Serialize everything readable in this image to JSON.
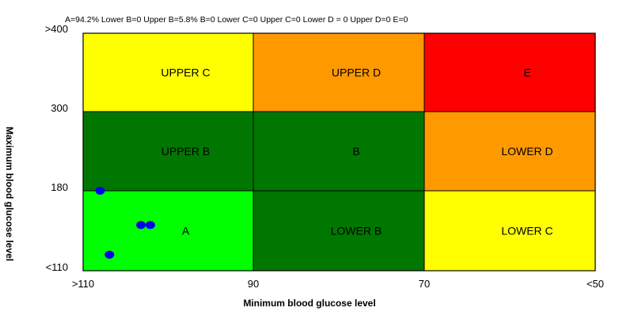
{
  "summary_text": "A=94.2% Lower B=0 Upper B=5.8% B=0 Lower C=0 Upper C=0 Lower D = 0  Upper D=0 E=0",
  "chart_data": {
    "type": "scatter",
    "title": "",
    "xlabel": "Minimum blood glucose level",
    "ylabel": "Maximum blood glucose level",
    "x_ticks": [
      ">110",
      "90",
      "70",
      "<50"
    ],
    "y_ticks": [
      ">400",
      "300",
      "180",
      "<110"
    ],
    "grid": {
      "cols": 3,
      "rows": 3
    },
    "zones": [
      {
        "label": "UPPER C",
        "col": 0,
        "row": 0,
        "color": "#FFFF00"
      },
      {
        "label": "UPPER D",
        "col": 1,
        "row": 0,
        "color": "#FF9900"
      },
      {
        "label": "E",
        "col": 2,
        "row": 0,
        "color": "#FF0000"
      },
      {
        "label": "UPPER B",
        "col": 0,
        "row": 1,
        "color": "#007700"
      },
      {
        "label": "B",
        "col": 1,
        "row": 1,
        "color": "#007700"
      },
      {
        "label": "LOWER D",
        "col": 2,
        "row": 1,
        "color": "#FF9900"
      },
      {
        "label": "A",
        "col": 0,
        "row": 2,
        "color": "#00FF00"
      },
      {
        "label": "LOWER B",
        "col": 1,
        "row": 2,
        "color": "#007700"
      },
      {
        "label": "LOWER C",
        "col": 2,
        "row": 2,
        "color": "#FFFF00"
      }
    ],
    "point_color": "#0000EE",
    "points": [
      {
        "x": 108.0,
        "y": 180
      },
      {
        "x": 103.2,
        "y": 150
      },
      {
        "x": 102.1,
        "y": 150
      },
      {
        "x": 106.9,
        "y": 124
      }
    ]
  }
}
